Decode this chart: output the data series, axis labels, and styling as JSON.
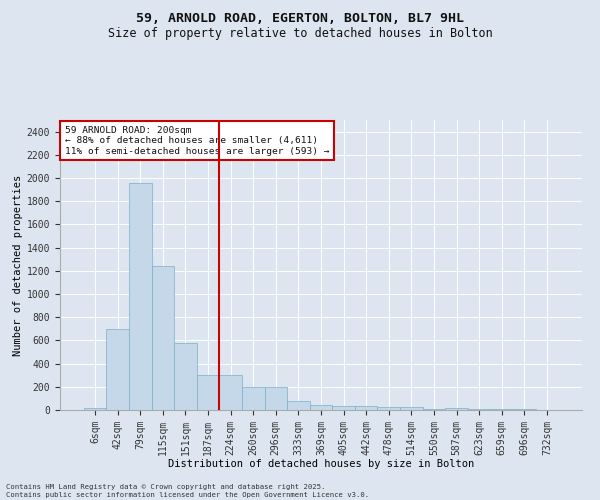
{
  "title": "59, ARNOLD ROAD, EGERTON, BOLTON, BL7 9HL",
  "subtitle": "Size of property relative to detached houses in Bolton",
  "xlabel": "Distribution of detached houses by size in Bolton",
  "ylabel": "Number of detached properties",
  "footer_line1": "Contains HM Land Registry data © Crown copyright and database right 2025.",
  "footer_line2": "Contains public sector information licensed under the Open Government Licence v3.0.",
  "annotation_line1": "59 ARNOLD ROAD: 200sqm",
  "annotation_line2": "← 88% of detached houses are smaller (4,611)",
  "annotation_line3": "11% of semi-detached houses are larger (593) →",
  "bar_color": "#c5d8ea",
  "bar_edgecolor": "#7aafc8",
  "vline_color": "#cc0000",
  "categories": [
    "6sqm",
    "42sqm",
    "79sqm",
    "115sqm",
    "151sqm",
    "187sqm",
    "224sqm",
    "260sqm",
    "296sqm",
    "333sqm",
    "369sqm",
    "405sqm",
    "442sqm",
    "478sqm",
    "514sqm",
    "550sqm",
    "587sqm",
    "623sqm",
    "659sqm",
    "696sqm",
    "732sqm"
  ],
  "values": [
    15,
    700,
    1960,
    1240,
    575,
    305,
    300,
    200,
    200,
    80,
    45,
    38,
    33,
    28,
    25,
    5,
    18,
    5,
    5,
    8,
    3
  ],
  "ylim": [
    0,
    2500
  ],
  "yticks": [
    0,
    200,
    400,
    600,
    800,
    1000,
    1200,
    1400,
    1600,
    1800,
    2000,
    2200,
    2400
  ],
  "background_color": "#dde6f0",
  "plot_background": "#dde6f0",
  "grid_color": "#ffffff",
  "title_fontsize": 9.5,
  "subtitle_fontsize": 8.5,
  "axis_fontsize": 7.5,
  "tick_fontsize": 7.0,
  "footer_fontsize": 5.2,
  "vline_bin_index": 5,
  "annotation_fontsize": 6.8
}
